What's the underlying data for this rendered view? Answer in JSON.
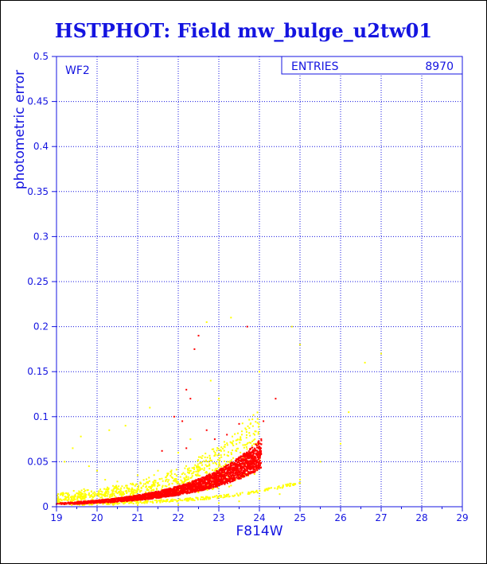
{
  "chart_data": {
    "type": "scatter",
    "title": "HSTPHOT: Field mw_bulge_u2tw01",
    "xlabel": "F814W",
    "ylabel": "photometric error",
    "xlim": [
      19,
      29
    ],
    "ylim": [
      0,
      0.5
    ],
    "xticks": [
      "19",
      "20",
      "21",
      "22",
      "23",
      "24",
      "25",
      "26",
      "27",
      "28",
      "29"
    ],
    "yticks": [
      "0",
      "0.05",
      "0.1",
      "0.15",
      "0.2",
      "0.25",
      "0.3",
      "0.35",
      "0.4",
      "0.45",
      "0.5"
    ],
    "grid": true,
    "panel_label": "WF2",
    "stats": {
      "label": "ENTRIES",
      "value": "8970"
    },
    "series_colors": [
      "#ff0000",
      "#ffff00"
    ],
    "series": [
      {
        "color": "#ff0000",
        "description_points": [
          [
            19.0,
            0.003
          ],
          [
            19.5,
            0.005
          ],
          [
            20.0,
            0.007
          ],
          [
            20.5,
            0.009
          ],
          [
            21.0,
            0.012
          ],
          [
            21.5,
            0.015
          ],
          [
            22.0,
            0.019
          ],
          [
            22.5,
            0.024
          ],
          [
            23.0,
            0.031
          ],
          [
            23.5,
            0.04
          ],
          [
            23.8,
            0.05
          ],
          [
            24.0,
            0.065
          ],
          [
            22.5,
            0.19
          ],
          [
            22.4,
            0.175
          ],
          [
            22.2,
            0.13
          ],
          [
            22.3,
            0.12
          ],
          [
            21.9,
            0.1
          ],
          [
            22.1,
            0.095
          ],
          [
            22.7,
            0.085
          ],
          [
            23.2,
            0.08
          ],
          [
            22.9,
            0.075
          ],
          [
            23.7,
            0.2
          ],
          [
            24.4,
            0.12
          ],
          [
            24.1,
            0.095
          ],
          [
            23.5,
            0.092
          ],
          [
            21.6,
            0.062
          ],
          [
            22.2,
            0.065
          ]
        ]
      },
      {
        "color": "#ffff00",
        "description_points": [
          [
            19.2,
            0.05
          ],
          [
            19.4,
            0.065
          ],
          [
            19.6,
            0.078
          ],
          [
            19.8,
            0.045
          ],
          [
            20.0,
            0.04
          ],
          [
            20.2,
            0.03
          ],
          [
            20.5,
            0.028
          ],
          [
            21.0,
            0.035
          ],
          [
            21.5,
            0.04
          ],
          [
            22.0,
            0.06
          ],
          [
            22.3,
            0.075
          ],
          [
            22.7,
            0.205
          ],
          [
            23.3,
            0.21
          ],
          [
            22.8,
            0.14
          ],
          [
            23.0,
            0.12
          ],
          [
            24.0,
            0.15
          ],
          [
            24.8,
            0.2
          ],
          [
            25.0,
            0.18
          ],
          [
            25.5,
            0.05
          ],
          [
            26.0,
            0.07
          ],
          [
            26.2,
            0.105
          ],
          [
            26.6,
            0.16
          ],
          [
            27.0,
            0.17
          ],
          [
            21.3,
            0.11
          ],
          [
            20.7,
            0.09
          ],
          [
            20.3,
            0.085
          ],
          [
            19.3,
            0.01
          ],
          [
            19.5,
            0.015
          ],
          [
            20.4,
            0.002
          ],
          [
            21.0,
            0.002
          ],
          [
            22.0,
            0.002
          ],
          [
            23.0,
            0.004
          ],
          [
            23.5,
            0.006
          ],
          [
            24.0,
            0.009
          ],
          [
            24.5,
            0.014
          ],
          [
            25.0,
            0.03
          ]
        ]
      }
    ]
  }
}
